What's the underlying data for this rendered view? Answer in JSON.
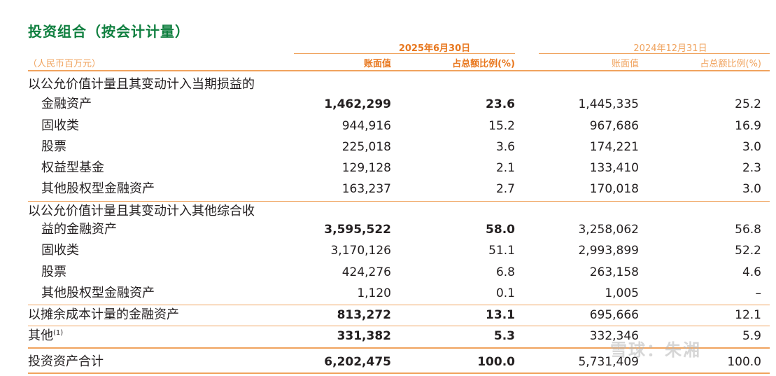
{
  "title": "投资组合（按会计计量）",
  "unit": "（人民币百万元）",
  "periods": {
    "current": "2025年6月30日",
    "previous": "2024年12月31日"
  },
  "columns": {
    "book_value": "账面值",
    "percent": "占总额比例(%)"
  },
  "rows": [
    {
      "label": "以公允价值计量且其变动计入当期损益的",
      "indent": false,
      "bold": false,
      "v1": "",
      "p1": "",
      "v2": "",
      "p2": ""
    },
    {
      "label": "金融资产",
      "indent": true,
      "bold": true,
      "v1": "1,462,299",
      "p1": "23.6",
      "v2": "1,445,335",
      "p2": "25.2"
    },
    {
      "label": "固收类",
      "indent": true,
      "bold": false,
      "v1": "944,916",
      "p1": "15.2",
      "v2": "967,686",
      "p2": "16.9"
    },
    {
      "label": "股票",
      "indent": true,
      "bold": false,
      "v1": "225,018",
      "p1": "3.6",
      "v2": "174,221",
      "p2": "3.0"
    },
    {
      "label": "权益型基金",
      "indent": true,
      "bold": false,
      "v1": "129,128",
      "p1": "2.1",
      "v2": "133,410",
      "p2": "2.3"
    },
    {
      "label": "其他股权型金融资产",
      "indent": true,
      "bold": false,
      "v1": "163,237",
      "p1": "2.7",
      "v2": "170,018",
      "p2": "3.0"
    },
    {
      "label": "以公允价值计量且其变动计入其他综合收",
      "indent": false,
      "bold": false,
      "v1": "",
      "p1": "",
      "v2": "",
      "p2": ""
    },
    {
      "label": "益的金融资产",
      "indent": true,
      "bold": true,
      "v1": "3,595,522",
      "p1": "58.0",
      "v2": "3,258,062",
      "p2": "56.8"
    },
    {
      "label": "固收类",
      "indent": true,
      "bold": false,
      "v1": "3,170,126",
      "p1": "51.1",
      "v2": "2,993,899",
      "p2": "52.2"
    },
    {
      "label": "股票",
      "indent": true,
      "bold": false,
      "v1": "424,276",
      "p1": "6.8",
      "v2": "263,158",
      "p2": "4.6"
    },
    {
      "label": "其他股权型金融资产",
      "indent": true,
      "bold": false,
      "v1": "1,120",
      "p1": "0.1",
      "v2": "1,005",
      "p2": "–"
    },
    {
      "label": "以摊余成本计量的金融资产",
      "indent": false,
      "bold": true,
      "v1": "813,272",
      "p1": "13.1",
      "v2": "695,666",
      "p2": "12.1"
    },
    {
      "label": "其他",
      "note": "(1)",
      "indent": false,
      "bold": true,
      "v1": "331,382",
      "p1": "5.3",
      "v2": "332,346",
      "p2": "5.9"
    },
    {
      "label": "投资资产合计",
      "indent": false,
      "bold": true,
      "v1": "6,202,475",
      "p1": "100.0",
      "v2": "5,731,409",
      "p2": "100.0"
    }
  ],
  "watermark": "雪球：朱湘"
}
